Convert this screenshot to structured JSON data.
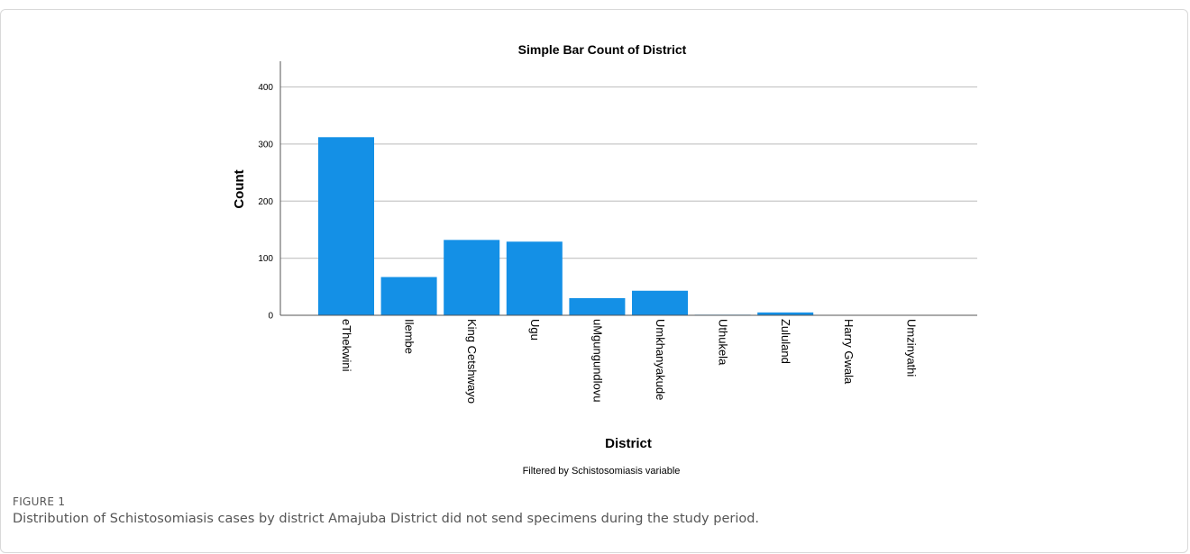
{
  "chart_data": {
    "type": "bar",
    "title": "Simple Bar Count of District",
    "xlabel": "District",
    "ylabel": "Count",
    "footnote": "Filtered by Schistosomiasis variable",
    "categories": [
      "eThekwini",
      "Ilembe",
      "King Cetshwayo",
      "Ugu",
      "uMgungundlovu",
      "Umkhanyakude",
      "Uthukela",
      "Zululand",
      "Harry Gwala",
      "Umzinyathi"
    ],
    "values": [
      312,
      67,
      132,
      129,
      30,
      43,
      1,
      5,
      0,
      0
    ],
    "ylim": [
      0,
      445
    ],
    "yticks": [
      0,
      100,
      200,
      300,
      400
    ],
    "grid": true,
    "bar_color": "#1490e6",
    "grid_color": "#c8c8c8"
  },
  "caption": {
    "label": "FIGURE 1",
    "text": "Distribution of Schistosomiasis cases by district Amajuba District did not send specimens during the study period."
  }
}
